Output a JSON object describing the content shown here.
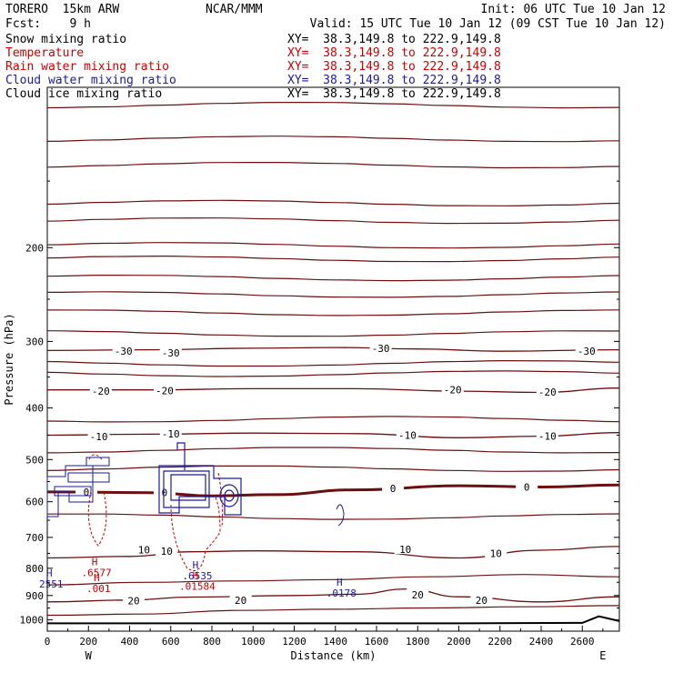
{
  "header": {
    "model": "TORERO  15km ARW",
    "org": "NCAR/MMM",
    "init": "Init: 06 UTC Tue 10 Jan 12",
    "fcst": "Fcst:    9 h",
    "valid": "Valid: 15 UTC Tue 10 Jan 12 (09 CST Tue 10 Jan 12)"
  },
  "fields": [
    {
      "name": "Snow mixing ratio",
      "xy": "XY=  38.3,149.8 to 222.9,149.8",
      "color": "#000000"
    },
    {
      "name": "Temperature",
      "xy": "XY=  38.3,149.8 to 222.9,149.8",
      "color": "#cc0000"
    },
    {
      "name": "Rain water mixing ratio",
      "xy": "XY=  38.3,149.8 to 222.9,149.8",
      "color": "#cc0000"
    },
    {
      "name": "Cloud water mixing ratio",
      "xy": "XY=  38.3,149.8 to 222.9,149.8",
      "color": "#1a1aa6"
    },
    {
      "name": "Cloud ice mixing ratio",
      "xy": "XY=  38.3,149.8 to 222.9,149.8",
      "color": "#000000"
    }
  ],
  "chart_data": {
    "type": "line",
    "title": "",
    "xlabel": "Distance (km)",
    "ylabel": "Pressure (hPa)",
    "xlim": [
      0,
      2780
    ],
    "ylim": [
      1050,
      100
    ],
    "ylog": true,
    "x_ticks": [
      0,
      200,
      400,
      600,
      800,
      1000,
      1200,
      1400,
      1600,
      1800,
      2000,
      2200,
      2400,
      2600
    ],
    "y_ticks": [
      200,
      300,
      400,
      500,
      600,
      700,
      800,
      900,
      1000
    ],
    "endpoints": {
      "left": "W",
      "right": "E"
    },
    "temperature_color": "#6b0f0f",
    "isotherms": [
      {
        "label": "-30",
        "points": [
          [
            0,
            312
          ],
          [
            500,
            311
          ],
          [
            1000,
            309
          ],
          [
            1400,
            308
          ],
          [
            1800,
            310
          ],
          [
            2200,
            313
          ],
          [
            2780,
            311
          ]
        ],
        "labels": [
          [
            370,
            313
          ],
          [
            600,
            315
          ],
          [
            1620,
            309
          ],
          [
            2620,
            313
          ]
        ]
      },
      {
        "label": "-20",
        "points": [
          [
            0,
            370
          ],
          [
            500,
            370
          ],
          [
            1000,
            368
          ],
          [
            1500,
            368
          ],
          [
            2000,
            372
          ],
          [
            2400,
            374
          ],
          [
            2780,
            367
          ]
        ],
        "labels": [
          [
            260,
            372
          ],
          [
            570,
            371
          ],
          [
            1970,
            370
          ],
          [
            2430,
            373
          ]
        ]
      },
      {
        "label": "-10",
        "points": [
          [
            0,
            450
          ],
          [
            500,
            448
          ],
          [
            1000,
            446
          ],
          [
            1500,
            447
          ],
          [
            2000,
            455
          ],
          [
            2400,
            452
          ],
          [
            2780,
            445
          ]
        ],
        "labels": [
          [
            250,
            453
          ],
          [
            600,
            447
          ],
          [
            1750,
            450
          ],
          [
            2430,
            452
          ]
        ]
      },
      {
        "label": "0",
        "points": [
          [
            0,
            575
          ],
          [
            500,
            577
          ],
          [
            800,
            585
          ],
          [
            1100,
            582
          ],
          [
            1500,
            570
          ],
          [
            2000,
            560
          ],
          [
            2400,
            563
          ],
          [
            2780,
            558
          ]
        ],
        "labels": [
          [
            190,
            575
          ],
          [
            570,
            576
          ],
          [
            1680,
            566
          ],
          [
            2330,
            563
          ]
        ]
      }
    ],
    "warm_isotherms": [
      {
        "label": "10",
        "points": [
          [
            0,
            765
          ],
          [
            400,
            760
          ],
          [
            700,
            745
          ],
          [
            1000,
            742
          ],
          [
            1500,
            745
          ],
          [
            2000,
            765
          ],
          [
            2400,
            740
          ],
          [
            2780,
            728
          ]
        ],
        "labels": [
          [
            470,
            738
          ],
          [
            580,
            743
          ],
          [
            1740,
            737
          ],
          [
            2180,
            750
          ]
        ]
      },
      {
        "label": "20",
        "points": [
          [
            0,
            925
          ],
          [
            400,
            918
          ],
          [
            700,
            906
          ],
          [
            1200,
            900
          ],
          [
            1500,
            895
          ],
          [
            1750,
            875
          ],
          [
            2000,
            905
          ],
          [
            2400,
            925
          ],
          [
            2780,
            905
          ]
        ],
        "labels": [
          [
            420,
            920
          ],
          [
            940,
            918
          ],
          [
            1800,
            897
          ],
          [
            2110,
            918
          ]
        ]
      }
    ],
    "surface_pressure": [
      [
        0,
        1015
      ],
      [
        1000,
        1015
      ],
      [
        2000,
        1015
      ],
      [
        2600,
        1013
      ],
      [
        2680,
        985
      ],
      [
        2780,
        1005
      ]
    ],
    "extremes": [
      {
        "kind": "H",
        "value": ".6577",
        "at": [
          230,
          790
        ],
        "color": "#cc0000"
      },
      {
        "kind": "H",
        "value": "2551",
        "at": [
          10,
          830
        ],
        "color": "#1a1aa6"
      },
      {
        "kind": "H",
        "value": ".001",
        "at": [
          240,
          845
        ],
        "color": "#cc0000"
      },
      {
        "kind": "H",
        "value": ".6535",
        "at": [
          720,
          800
        ],
        "color": "#1a1aa6"
      },
      {
        "kind": "H",
        "value": ".01584",
        "at": [
          720,
          838
        ],
        "color": "#cc0000"
      },
      {
        "kind": "H",
        "value": ".0178",
        "at": [
          1420,
          863
        ],
        "color": "#1a1aa6"
      }
    ]
  }
}
